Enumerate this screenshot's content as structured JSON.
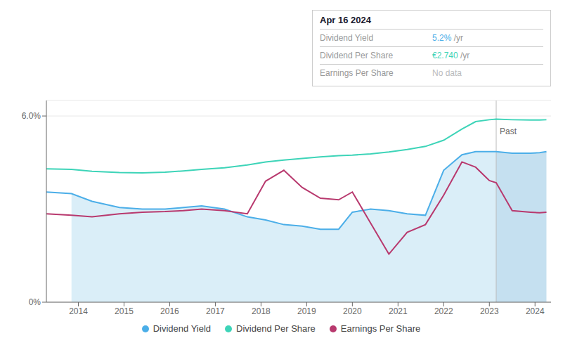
{
  "chart_data": {
    "type": "line",
    "x": [
      2013.3,
      2013.85,
      2014.3,
      2014.9,
      2015.4,
      2015.9,
      2016.3,
      2016.7,
      2017.2,
      2017.7,
      2018.1,
      2018.5,
      2018.9,
      2019.3,
      2019.7,
      2020.0,
      2020.4,
      2020.8,
      2021.2,
      2021.6,
      2022.0,
      2022.4,
      2022.7,
      2023.0,
      2023.15,
      2023.5,
      2023.9,
      2024.1,
      2024.25
    ],
    "xlim": [
      2013.3,
      2024.35
    ],
    "xticks": [
      2014,
      2015,
      2016,
      2017,
      2018,
      2019,
      2020,
      2021,
      2022,
      2023,
      2024
    ],
    "ylim": [
      0,
      6.5
    ],
    "yticks": [
      {
        "value": 0,
        "label": "0%"
      },
      {
        "value": 6,
        "label": "6.0%"
      }
    ],
    "grid": true,
    "legend": "bottom",
    "series": [
      {
        "name": "Dividend Yield",
        "color": "#4baee8",
        "values": [
          3.55,
          3.5,
          3.25,
          3.05,
          3.0,
          3.0,
          3.05,
          3.1,
          3.0,
          2.75,
          2.65,
          2.5,
          2.45,
          2.35,
          2.35,
          2.9,
          3.0,
          2.95,
          2.85,
          2.8,
          4.25,
          4.75,
          4.85,
          4.85,
          4.85,
          4.8,
          4.8,
          4.82,
          4.85
        ]
      },
      {
        "name": "Dividend Per Share",
        "color": "#3dd4b8",
        "values": [
          4.3,
          4.28,
          4.22,
          4.18,
          4.17,
          4.19,
          4.23,
          4.28,
          4.33,
          4.42,
          4.52,
          4.58,
          4.63,
          4.68,
          4.72,
          4.74,
          4.78,
          4.84,
          4.92,
          5.02,
          5.22,
          5.58,
          5.82,
          5.88,
          5.9,
          5.88,
          5.87,
          5.87,
          5.88
        ]
      },
      {
        "name": "Earnings Per Share",
        "color": "#b8396e",
        "values": [
          2.85,
          2.8,
          2.75,
          2.85,
          2.9,
          2.92,
          2.95,
          3.0,
          2.95,
          2.85,
          3.9,
          4.25,
          3.7,
          3.35,
          3.3,
          3.55,
          2.55,
          1.55,
          2.25,
          2.5,
          3.45,
          4.52,
          4.35,
          3.92,
          3.85,
          2.95,
          2.9,
          2.88,
          2.9
        ]
      }
    ],
    "shading": [
      {
        "series": "Dividend Yield",
        "from": 2013.85,
        "to": 2023.15,
        "color": "#daeef8"
      },
      {
        "series": "Dividend Yield",
        "from": 2023.15,
        "color": "#c5e0f0"
      }
    ],
    "vertical_line": 2023.15,
    "annotations": [
      {
        "text": "Past",
        "x": 2023.15,
        "y": 5.5
      }
    ],
    "info_box": {
      "title": "Apr 16 2024",
      "rows": [
        {
          "label": "Dividend Yield",
          "value": "5.2%",
          "unit": " /yr",
          "color": "#4baee8"
        },
        {
          "label": "Dividend Per Share",
          "value": "€2.740",
          "unit": " /yr",
          "color": "#3dd4b8"
        },
        {
          "label": "Earnings Per Share",
          "value": "No data",
          "color": "#bbbbbb"
        }
      ]
    }
  }
}
